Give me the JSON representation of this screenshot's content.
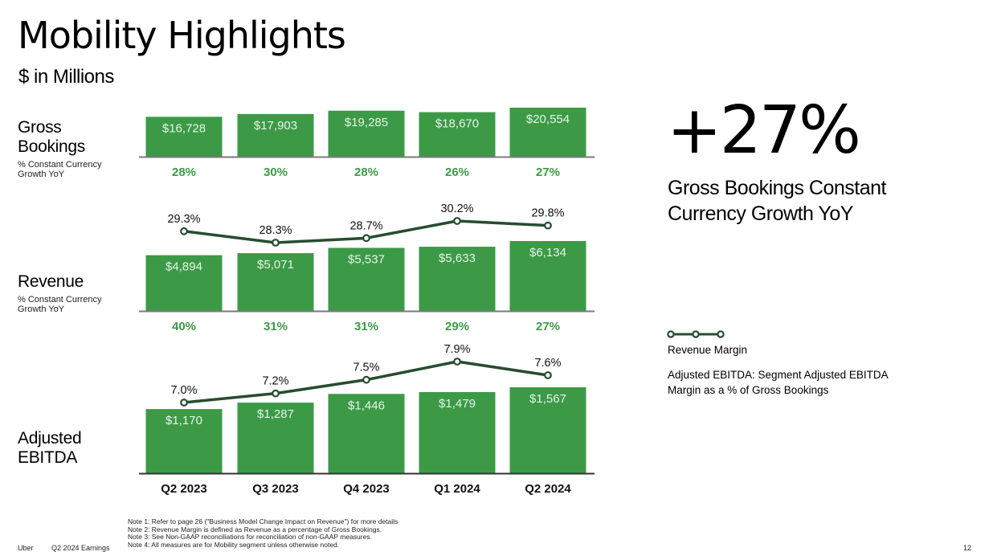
{
  "header": {
    "title": "Mobility Highlights",
    "subtitle": "$ in Millions"
  },
  "rows": {
    "gross_bookings": {
      "label_line1": "Gross",
      "label_line2": "Bookings",
      "sub_line1": "% Constant Currency",
      "sub_line2": "Growth YoY"
    },
    "revenue": {
      "label_line1": "Revenue",
      "sub_line1": "% Constant Currency",
      "sub_line2": "Growth YoY"
    },
    "adjusted_ebitda": {
      "label_line1": "Adjusted",
      "label_line2": "EBITDA"
    }
  },
  "highlight": {
    "value": "+27%",
    "caption": "Gross Bookings Constant Currency Growth YoY"
  },
  "legend": {
    "icon": "line-with-circle-markers-icon",
    "label": "Revenue Margin",
    "note": "Adjusted EBITDA: Segment Adjusted EBITDA Margin as a % of Gross Bookings"
  },
  "footer": {
    "brand": "Uber",
    "event": "Q2 2024 Earnings",
    "notes": [
      "Note 1: Refer to page 26 (\"Business Model Change Impact on Revenue\") for more details",
      "Note 2: Revenue Margin is defined as Revenue as a percentage of Gross Bookings.",
      "Note 3: See Non-GAAP reconciliations for reconciliation of non-GAAP measures.",
      "Note 4: All measures are for Mobility segment unless otherwise noted."
    ],
    "page_number": "12"
  },
  "colors": {
    "bar": "#3c9a47",
    "line": "#264d30",
    "growth_text": "#3d9a46",
    "axis": "#7a7a7a"
  },
  "chart_data": [
    {
      "type": "bar",
      "title": "Gross Bookings",
      "categories": [
        "Q2 2023",
        "Q3 2023",
        "Q4 2023",
        "Q1 2024",
        "Q2 2024"
      ],
      "values": [
        16728,
        17903,
        19285,
        18670,
        20554
      ],
      "value_labels": [
        "$16,728",
        "$17,903",
        "$19,285",
        "$18,670",
        "$20,554"
      ],
      "growth_label": "% Constant Currency Growth YoY",
      "growth": [
        "28%",
        "30%",
        "28%",
        "26%",
        "27%"
      ],
      "unit": "$ in Millions"
    },
    {
      "type": "bar",
      "title": "Revenue",
      "categories": [
        "Q2 2023",
        "Q3 2023",
        "Q4 2023",
        "Q1 2024",
        "Q2 2024"
      ],
      "values": [
        4894,
        5071,
        5537,
        5633,
        6134
      ],
      "value_labels": [
        "$4,894",
        "$5,071",
        "$5,537",
        "$5,633",
        "$6,134"
      ],
      "growth_label": "% Constant Currency Growth YoY",
      "growth": [
        "40%",
        "31%",
        "31%",
        "29%",
        "27%"
      ],
      "line_series": {
        "name": "Revenue Margin",
        "values": [
          29.3,
          28.3,
          28.7,
          30.2,
          29.8
        ],
        "labels": [
          "29.3%",
          "28.3%",
          "28.7%",
          "30.2%",
          "29.8%"
        ]
      },
      "unit": "$ in Millions"
    },
    {
      "type": "bar",
      "title": "Adjusted EBITDA",
      "categories": [
        "Q2 2023",
        "Q3 2023",
        "Q4 2023",
        "Q1 2024",
        "Q2 2024"
      ],
      "values": [
        1170,
        1287,
        1446,
        1479,
        1567
      ],
      "value_labels": [
        "$1,170",
        "$1,287",
        "$1,446",
        "$1,479",
        "$1,567"
      ],
      "line_series": {
        "name": "Adjusted EBITDA Margin as a % of Gross Bookings",
        "values": [
          7.0,
          7.2,
          7.5,
          7.9,
          7.6
        ],
        "labels": [
          "7.0%",
          "7.2%",
          "7.5%",
          "7.9%",
          "7.6%"
        ]
      },
      "unit": "$ in Millions"
    }
  ]
}
